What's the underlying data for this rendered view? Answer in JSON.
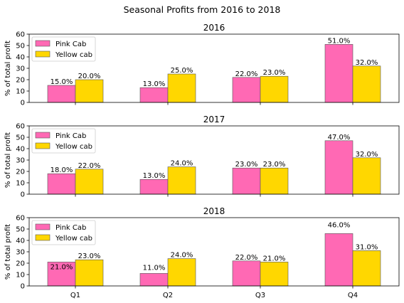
{
  "suptitle": "Seasonal Profits from 2016 to 2018",
  "colors": {
    "pink": "#ff69b4",
    "yellow": "#ffd700",
    "edge": "#555555"
  },
  "chart_data": [
    {
      "type": "bar",
      "title": "2016",
      "categories": [
        "Q1",
        "Q2",
        "Q3",
        "Q4"
      ],
      "series": [
        {
          "name": "Pink Cab",
          "values": [
            15,
            13,
            22,
            51
          ],
          "labels": [
            "15.0%",
            "13.0%",
            "22.0%",
            "51.0%"
          ]
        },
        {
          "name": "Yellow cab",
          "values": [
            20,
            25,
            23,
            32
          ],
          "labels": [
            "20.0%",
            "25.0%",
            "23.0%",
            "32.0%"
          ]
        }
      ],
      "ylabel": "% of total profit",
      "ylim": [
        0,
        60
      ],
      "yticks": [
        "0",
        "10",
        "20",
        "30",
        "40",
        "50",
        "60"
      ],
      "legend": "top-left",
      "grid": false
    },
    {
      "type": "bar",
      "title": "2017",
      "categories": [
        "Q1",
        "Q2",
        "Q3",
        "Q4"
      ],
      "series": [
        {
          "name": "Pink Cab",
          "values": [
            18,
            13,
            23,
            47
          ],
          "labels": [
            "18.0%",
            "13.0%",
            "23.0%",
            "47.0%"
          ]
        },
        {
          "name": "Yellow cab",
          "values": [
            22,
            24,
            23,
            32
          ],
          "labels": [
            "22.0%",
            "24.0%",
            "23.0%",
            "32.0%"
          ]
        }
      ],
      "ylabel": "% of total profit",
      "ylim": [
        0,
        60
      ],
      "yticks": [
        "0",
        "10",
        "20",
        "30",
        "40",
        "50",
        "60"
      ],
      "legend": "top-left",
      "grid": false
    },
    {
      "type": "bar",
      "title": "2018",
      "categories": [
        "Q1",
        "Q2",
        "Q3",
        "Q4"
      ],
      "series": [
        {
          "name": "Pink Cab",
          "values": [
            21,
            11,
            22,
            46
          ],
          "labels": [
            "21.0%",
            "11.0%",
            "22.0%",
            "46.0%"
          ]
        },
        {
          "name": "Yellow cab",
          "values": [
            23,
            24,
            21,
            31
          ],
          "labels": [
            "23.0%",
            "24.0%",
            "21.0%",
            "31.0%"
          ]
        }
      ],
      "ylabel": "% of total profit",
      "ylim": [
        0,
        60
      ],
      "yticks": [
        "0",
        "10",
        "20",
        "30",
        "40",
        "50",
        "60"
      ],
      "legend": "top-left",
      "grid": false
    }
  ]
}
